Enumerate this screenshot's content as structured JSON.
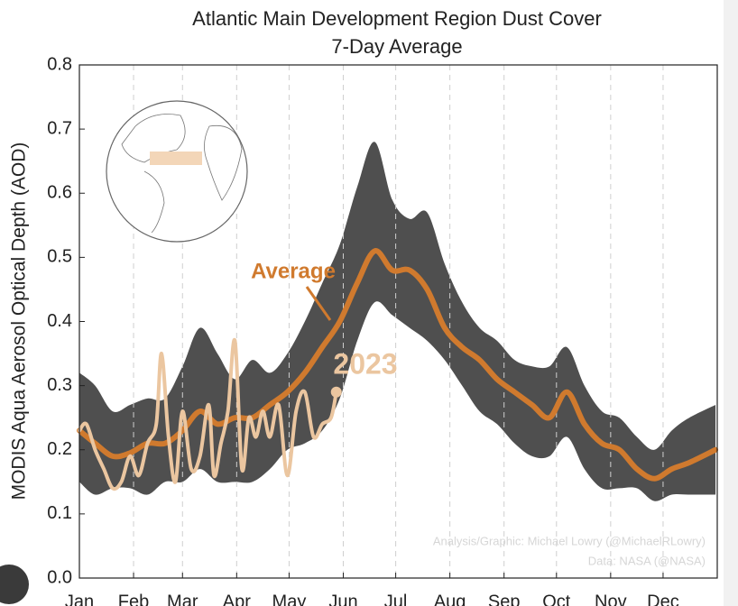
{
  "chart_data": {
    "type": "line",
    "title": "Atlantic Main Development Region Dust Cover",
    "subtitle": "7-Day Average",
    "y_label": "MODIS Aqua Aerosol Optical Depth (AOD)",
    "credit": [
      "Analysis/Graphic: Michael Lowry (@MichaelRLowry)",
      "Data: NASA (@NASA)"
    ],
    "xlim": [
      1,
      366
    ],
    "xticks": [
      {
        "value": 1,
        "label": "Jan"
      },
      {
        "value": 32,
        "label": "Feb"
      },
      {
        "value": 60,
        "label": "Mar"
      },
      {
        "value": 91,
        "label": "Apr"
      },
      {
        "value": 121,
        "label": "May"
      },
      {
        "value": 152,
        "label": "Jun"
      },
      {
        "value": 182,
        "label": "Jul"
      },
      {
        "value": 213,
        "label": "Aug"
      },
      {
        "value": 244,
        "label": "Sep"
      },
      {
        "value": 274,
        "label": "Oct"
      },
      {
        "value": 305,
        "label": "Nov"
      },
      {
        "value": 335,
        "label": "Dec"
      }
    ],
    "ylim": [
      0,
      0.8
    ],
    "yticks": [
      {
        "value": 0,
        "label": "0.0"
      },
      0.1,
      0.2,
      0.3,
      0.4,
      0.5,
      0.6,
      0.7,
      0.8
    ],
    "grid": true,
    "x": [
      1,
      10,
      20,
      30,
      40,
      50,
      60,
      70,
      80,
      90,
      100,
      110,
      120,
      130,
      140,
      150,
      160,
      170,
      180,
      190,
      200,
      210,
      220,
      230,
      240,
      250,
      260,
      270,
      280,
      290,
      300,
      310,
      320,
      330,
      340,
      350,
      365
    ],
    "band": {
      "color": "#4f4f4f",
      "upper": [
        0.32,
        0.3,
        0.26,
        0.27,
        0.28,
        0.28,
        0.33,
        0.39,
        0.35,
        0.31,
        0.34,
        0.32,
        0.35,
        0.4,
        0.46,
        0.52,
        0.61,
        0.68,
        0.59,
        0.56,
        0.57,
        0.49,
        0.43,
        0.39,
        0.37,
        0.34,
        0.33,
        0.33,
        0.36,
        0.3,
        0.26,
        0.25,
        0.22,
        0.2,
        0.23,
        0.25,
        0.27
      ],
      "lower": [
        0.15,
        0.13,
        0.14,
        0.14,
        0.13,
        0.15,
        0.15,
        0.17,
        0.15,
        0.15,
        0.15,
        0.17,
        0.2,
        0.21,
        0.23,
        0.28,
        0.37,
        0.43,
        0.41,
        0.39,
        0.37,
        0.34,
        0.3,
        0.26,
        0.24,
        0.21,
        0.19,
        0.19,
        0.22,
        0.17,
        0.14,
        0.14,
        0.14,
        0.12,
        0.13,
        0.13,
        0.13
      ]
    },
    "series": [
      {
        "name": "Average",
        "color": "#d07a2e",
        "values": [
          0.23,
          0.21,
          0.19,
          0.195,
          0.21,
          0.21,
          0.23,
          0.26,
          0.24,
          0.25,
          0.25,
          0.27,
          0.29,
          0.32,
          0.36,
          0.4,
          0.46,
          0.51,
          0.48,
          0.48,
          0.45,
          0.39,
          0.36,
          0.34,
          0.31,
          0.29,
          0.27,
          0.25,
          0.29,
          0.24,
          0.21,
          0.2,
          0.17,
          0.155,
          0.17,
          0.18,
          0.2
        ]
      },
      {
        "name": "2023",
        "color": "#ebc6a0",
        "x": [
          1,
          5,
          10,
          15,
          20,
          25,
          30,
          35,
          40,
          45,
          48,
          52,
          56,
          60,
          65,
          70,
          75,
          78,
          82,
          86,
          90,
          94,
          98,
          102,
          106,
          110,
          115,
          120,
          125,
          130,
          135,
          140,
          145,
          148
        ],
        "values": [
          0.23,
          0.24,
          0.2,
          0.17,
          0.14,
          0.15,
          0.19,
          0.16,
          0.21,
          0.24,
          0.35,
          0.22,
          0.15,
          0.26,
          0.17,
          0.19,
          0.27,
          0.16,
          0.21,
          0.26,
          0.37,
          0.17,
          0.25,
          0.22,
          0.26,
          0.22,
          0.27,
          0.16,
          0.26,
          0.29,
          0.22,
          0.24,
          0.25,
          0.29
        ]
      }
    ]
  }
}
